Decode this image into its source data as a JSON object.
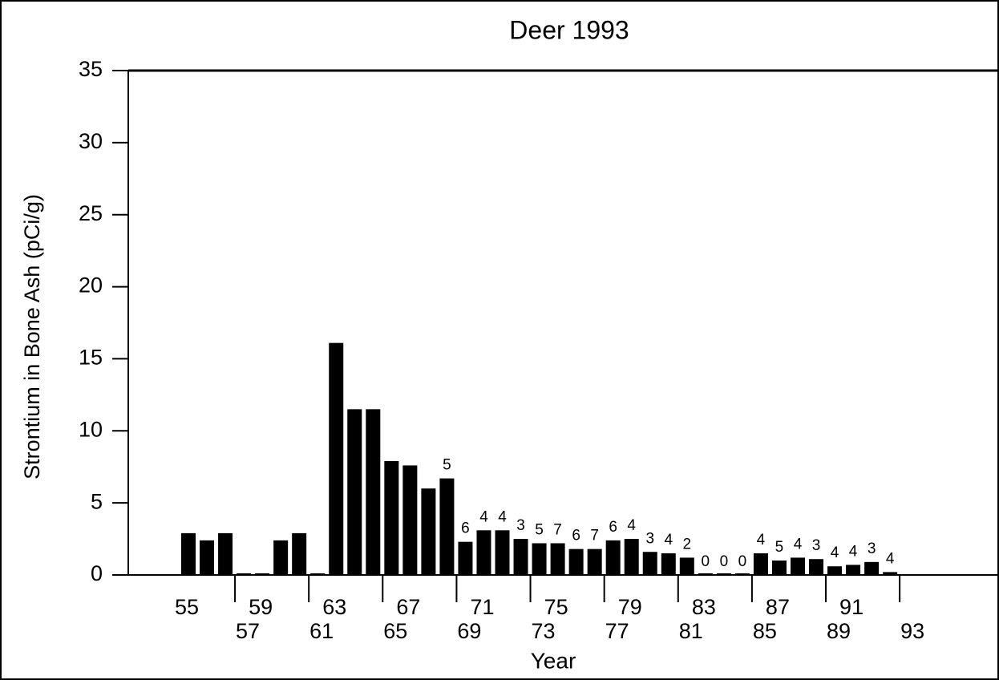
{
  "chart_data": {
    "type": "bar",
    "title": "Deer 1993",
    "y_label": "Strontium in Bone Ash (pCi/g)",
    "x_label": "Year",
    "categories": [
      "55",
      null,
      "57",
      null,
      "59",
      null,
      "61",
      null,
      "63",
      null,
      "65",
      null,
      "67",
      null,
      "69",
      null,
      "71",
      null,
      "73",
      null,
      "75",
      null,
      "77",
      null,
      "79",
      null,
      "81",
      null,
      "83",
      null,
      "85",
      null,
      "87",
      null,
      "89",
      null,
      "91",
      null,
      "93"
    ],
    "values": [
      2.9,
      2.4,
      2.9,
      0,
      0,
      2.4,
      2.9,
      0,
      16.1,
      11.5,
      11.5,
      7.9,
      7.6,
      6.0,
      6.7,
      2.3,
      3.1,
      3.1,
      2.5,
      2.2,
      2.2,
      1.8,
      1.8,
      2.4,
      2.5,
      1.6,
      1.5,
      1.2,
      0,
      0,
      0,
      1.5,
      1.0,
      1.2,
      1.1,
      0.6,
      0.7,
      0.9,
      0.2
    ],
    "sample_counts": [
      null,
      null,
      null,
      null,
      null,
      null,
      null,
      null,
      null,
      null,
      null,
      null,
      null,
      null,
      "5",
      "6",
      "4",
      "4",
      "3",
      "5",
      "7",
      "6",
      "7",
      "6",
      "4",
      "3",
      "4",
      "2",
      "0",
      "0",
      "0",
      "4",
      "5",
      "4",
      "3",
      "4",
      "4",
      "3",
      "4"
    ],
    "color": "#000000",
    "ylim": [
      0,
      35
    ],
    "yticks": [
      0,
      5,
      10,
      15,
      20,
      25,
      30,
      35
    ]
  }
}
